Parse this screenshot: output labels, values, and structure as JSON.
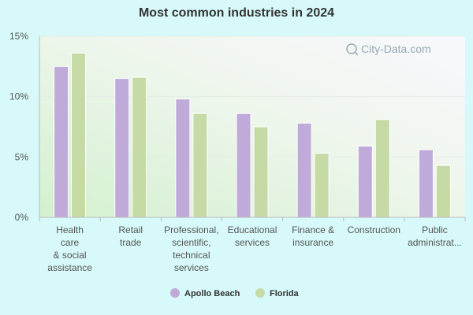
{
  "chart_data": {
    "type": "bar",
    "title": "Most common industries in 2024",
    "categories": [
      [
        "Health",
        "care",
        "& social",
        "assistance"
      ],
      [
        "Retail",
        "trade"
      ],
      [
        "Professional,",
        "scientific,",
        "technical",
        "services"
      ],
      [
        "Educational",
        "services"
      ],
      [
        "Finance &",
        "insurance"
      ],
      [
        "Construction"
      ],
      [
        "Public",
        "administrat..."
      ]
    ],
    "series": [
      {
        "name": "Apollo Beach",
        "color": "#c0aad9",
        "values": [
          12.5,
          11.5,
          9.8,
          8.6,
          7.8,
          5.9,
          5.6
        ]
      },
      {
        "name": "Florida",
        "color": "#c6daa6",
        "values": [
          13.6,
          11.6,
          8.6,
          7.5,
          5.3,
          8.1,
          4.3
        ]
      }
    ],
    "ylim": [
      0,
      15
    ],
    "yticks": [
      "0%",
      "5%",
      "10%",
      "15%"
    ],
    "ytick_values": [
      0,
      5,
      10,
      15
    ],
    "legend_position": "bottom-center",
    "grid": true
  },
  "watermark": "City-Data.com"
}
